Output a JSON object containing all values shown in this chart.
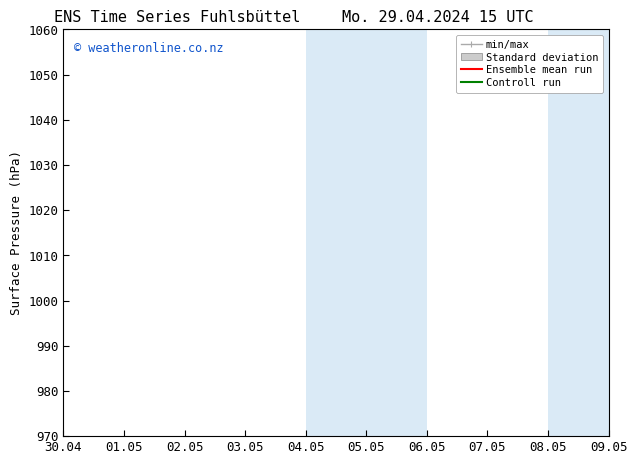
{
  "title_left": "ENS Time Series Fuhlsbüttel",
  "title_right": "Mo. 29.04.2024 15 UTC",
  "ylabel": "Surface Pressure (hPa)",
  "ylim": [
    970,
    1060
  ],
  "yticks": [
    970,
    980,
    990,
    1000,
    1010,
    1020,
    1030,
    1040,
    1050,
    1060
  ],
  "xtick_labels": [
    "30.04",
    "01.05",
    "02.05",
    "03.05",
    "04.05",
    "05.05",
    "06.05",
    "07.05",
    "08.05",
    "09.05"
  ],
  "xtick_positions": [
    0,
    1,
    2,
    3,
    4,
    5,
    6,
    7,
    8,
    9
  ],
  "xlim": [
    0,
    9
  ],
  "shaded_regions": [
    {
      "xmin": 4,
      "xmax": 6
    },
    {
      "xmin": 8,
      "xmax": 9
    }
  ],
  "shaded_color": "#daeaf6",
  "watermark_text": "© weatheronline.co.nz",
  "watermark_color": "#1155cc",
  "legend_entries": [
    {
      "label": "min/max",
      "color": "#aaaaaa",
      "lw": 1.0,
      "style": "minmax"
    },
    {
      "label": "Standard deviation",
      "color": "#cccccc",
      "lw": 8,
      "style": "band"
    },
    {
      "label": "Ensemble mean run",
      "color": "#ff0000",
      "lw": 1.5,
      "style": "line"
    },
    {
      "label": "Controll run",
      "color": "#008000",
      "lw": 1.5,
      "style": "line"
    }
  ],
  "bg_color": "#ffffff",
  "font_size": 9,
  "title_fontsize": 11
}
